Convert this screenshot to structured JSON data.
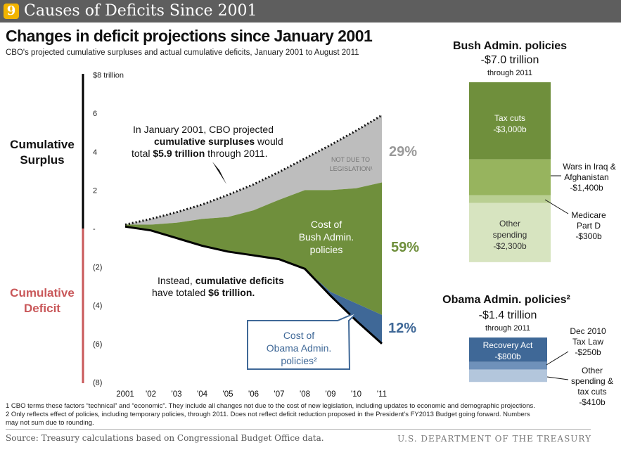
{
  "header": {
    "number": "9",
    "title": "Causes of Deficits Since 2001"
  },
  "main": {
    "title": "Changes in deficit projections since January 2001",
    "subtitle": "CBO's projected cumulative surpluses and actual cumulative deficits, January 2001 to August 2011",
    "surplus_label": [
      "Cumulative",
      "Surplus"
    ],
    "deficit_label": [
      "Cumulative",
      "Deficit"
    ]
  },
  "chart_data": [
    {
      "type": "area",
      "title": "Changes in deficit projections since January 2001",
      "subtitle": "CBO's projected cumulative surpluses and actual cumulative deficits, January 2001 to August 2011",
      "x": [
        "2001",
        "'02",
        "'03",
        "'04",
        "'05",
        "'06",
        "'07",
        "'08",
        "'09",
        "'10",
        "'11"
      ],
      "y_ticks": [
        "$8 trillion",
        "6",
        "4",
        "2",
        "-",
        "(2)",
        "(4)",
        "(6)",
        "(8)"
      ],
      "ylim": [
        -8,
        8
      ],
      "y_unit": "$ trillion",
      "series": [
        {
          "name": "Cumulative surpluses projected by CBO (Jan 2001)",
          "style": "dotted-line",
          "values": [
            0.2,
            0.5,
            0.85,
            1.25,
            1.75,
            2.3,
            2.95,
            3.65,
            4.35,
            5.1,
            5.9
          ]
        },
        {
          "name": "Not due to legislation",
          "color": "#bdbdbd",
          "share_label": "29%",
          "values": [
            0.2,
            0.5,
            0.85,
            1.25,
            1.75,
            2.3,
            2.95,
            3.65,
            4.35,
            5.1,
            5.9
          ]
        },
        {
          "name": "Cost of Bush Admin. policies",
          "color": "#6f8f3c",
          "share_label": "59%",
          "values": [
            0.2,
            0.2,
            0.3,
            0.5,
            0.6,
            0.95,
            1.5,
            2.0,
            2.0,
            2.1,
            2.4
          ]
        },
        {
          "name": "Cost of Obama Admin. policies",
          "color": "#3f6897",
          "share_label": "12%",
          "values": [
            0,
            0,
            0,
            0,
            0,
            0,
            0,
            0,
            -3.3,
            -3.9,
            -4.5
          ]
        },
        {
          "name": "Actual cumulative deficits",
          "style": "solid-line",
          "values": [
            0.1,
            -0.1,
            -0.5,
            -0.9,
            -1.2,
            -1.4,
            -1.6,
            -2.1,
            -3.5,
            -4.8,
            -6.0
          ]
        }
      ],
      "annotations": {
        "projection": [
          "In January 2001, CBO projected",
          "cumulative surpluses",
          " would",
          "total ",
          "$5.9 trillion",
          " through 2011."
        ],
        "not_due": [
          "NOT DUE TO",
          "LEGISLATION¹"
        ],
        "bush_cost": [
          "Cost of",
          "Bush Admin.",
          "policies"
        ],
        "deficits": [
          "Instead, ",
          "cumulative deficits",
          "have totaled ",
          "$6 trillion."
        ],
        "obama_cost": [
          "Cost of",
          "Obama Admin.",
          "policies²"
        ],
        "pct_29": "29%",
        "pct_59": "59%",
        "pct_12": "12%"
      }
    },
    {
      "type": "bar",
      "title": "Bush Admin. policies",
      "total": "-$7.0 trillion",
      "period": "through 2011",
      "unit": "$ billion",
      "segments": [
        {
          "name": "Tax cuts",
          "value": -3000,
          "label": "-$3,000b",
          "color": "#6f8f3c"
        },
        {
          "name": "Wars in Iraq & Afghanistan",
          "value": -1400,
          "label": "-$1,400b",
          "color": "#97b45e"
        },
        {
          "name": "Medicare Part D",
          "value": -300,
          "label": "-$300b",
          "color": "#b9cf92"
        },
        {
          "name": "Other spending",
          "value": -2300,
          "label": "-$2,300b",
          "color": "#d7e4c0"
        }
      ],
      "labels": {
        "tax": [
          "Tax cuts",
          "-$3,000b"
        ],
        "wars": [
          "Wars in Iraq  &",
          "Afghanistan",
          "-$1,400b"
        ],
        "medicare": [
          "Medicare",
          "Part D",
          "-$300b"
        ],
        "other": [
          "Other",
          "spending",
          "-$2,300b"
        ]
      }
    },
    {
      "type": "bar",
      "title": "Obama Admin. policies²",
      "total": "-$1.4 trillion",
      "period": "through 2011",
      "unit": "$ billion",
      "segments": [
        {
          "name": "Recovery Act",
          "value": -800,
          "label": "-$800b",
          "color": "#3f6897"
        },
        {
          "name": "Dec 2010 Tax Law",
          "value": -250,
          "label": "-$250b",
          "color": "#6f91ba"
        },
        {
          "name": "Other spending & tax cuts",
          "value": -410,
          "label": "-$410b",
          "color": "#b3c6dc"
        }
      ],
      "labels": {
        "recovery": [
          "Recovery Act",
          "-$800b"
        ],
        "dec": [
          "Dec 2010",
          "Tax Law",
          "-$250b"
        ],
        "other": [
          "Other",
          "spending &",
          "tax cuts",
          "-$410b"
        ]
      }
    }
  ],
  "notes": [
    "1 CBO terms these factors “technical” and “economic”. They include all changes not due to the cost of new legislation, including updates to economic and demographic projections.",
    "2 Only reflects effect of policies, including temporary policies, through 2011. Does not reflect deficit reduction proposed in the President’s FY2013 Budget going forward. Numbers",
    "may not sum due to rounding."
  ],
  "footer": {
    "source": "Source: Treasury calculations based on Congressional Budget Office data.",
    "department": "U.S. DEPARTMENT OF THE TREASURY"
  },
  "colors": {
    "surplus_axis": "#000000",
    "deficit_axis": "#c9585a",
    "gray": "#bdbdbd",
    "green": "#6f8f3c",
    "blue": "#3f6897",
    "header": "#5e5e5e",
    "badge": "#f2b400"
  }
}
